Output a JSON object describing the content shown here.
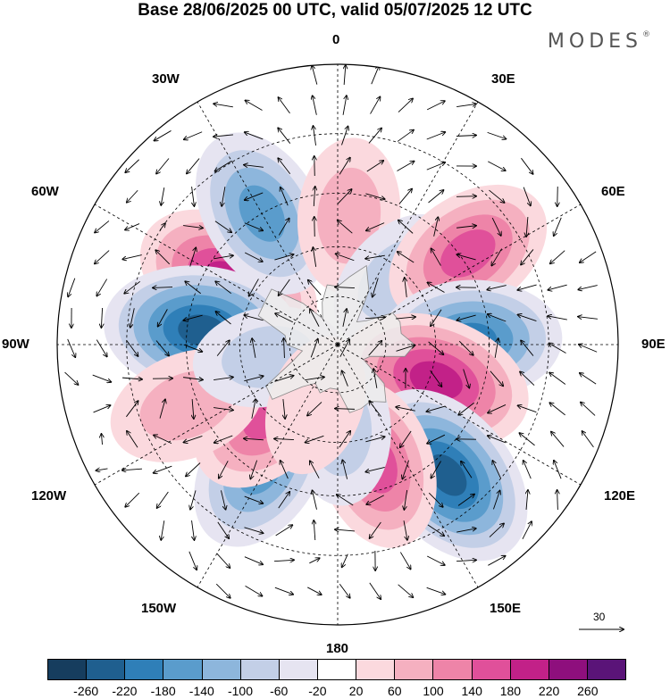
{
  "title": "Base 28/06/2025 00 UTC, valid 05/07/2025 12 UTC",
  "brand": "MODES",
  "brand_mark": "®",
  "longitude_labels": {
    "lon_0": "0",
    "lon_30e": "30E",
    "lon_60e": "60E",
    "lon_90e": "90E",
    "lon_120e": "120E",
    "lon_150e": "150E",
    "lon_180": "180",
    "lon_150w": "150W",
    "lon_120w": "120W",
    "lon_90w": "90W",
    "lon_60w": "60W",
    "lon_30w": "30W"
  },
  "reference_vector": {
    "label": "30"
  },
  "colorbar": {
    "colors": [
      "#163d5e",
      "#1f5f8f",
      "#2f7fb8",
      "#5a9ccc",
      "#8db6dc",
      "#c3cfe7",
      "#e6e4f1",
      "#ffffff",
      "#fbd9de",
      "#f5b0c0",
      "#ee84a8",
      "#e0509a",
      "#c22188",
      "#8e0f7d",
      "#5a1478"
    ],
    "labels": [
      "-260",
      "-220",
      "-180",
      "-140",
      "-100",
      "-60",
      "-20",
      "20",
      "60",
      "100",
      "140",
      "180",
      "220",
      "260"
    ]
  },
  "anomaly_centers": [
    {
      "lon": -60,
      "lat": -52,
      "value": 230
    },
    {
      "lon": -84,
      "lat": -49,
      "value": -250
    },
    {
      "lon": -30,
      "lat": -45,
      "value": -170
    },
    {
      "lon": 5,
      "lat": -51,
      "value": 100
    },
    {
      "lon": 42,
      "lat": -63,
      "value": -80
    },
    {
      "lon": 55,
      "lat": -43,
      "value": 170
    },
    {
      "lon": 88,
      "lat": -50,
      "value": -200
    },
    {
      "lon": 110,
      "lat": -58,
      "value": 230
    },
    {
      "lon": 140,
      "lat": -40,
      "value": -250
    },
    {
      "lon": 162,
      "lat": -52,
      "value": 160
    },
    {
      "lon": 178,
      "lat": -64,
      "value": -90
    },
    {
      "lon": -148,
      "lat": -47,
      "value": -170
    },
    {
      "lon": -135,
      "lat": -60,
      "value": 170
    },
    {
      "lon": -112,
      "lat": -42,
      "value": 110
    },
    {
      "lon": -100,
      "lat": -68,
      "value": -80
    },
    {
      "lon": -160,
      "lat": -70,
      "value": 50
    }
  ]
}
